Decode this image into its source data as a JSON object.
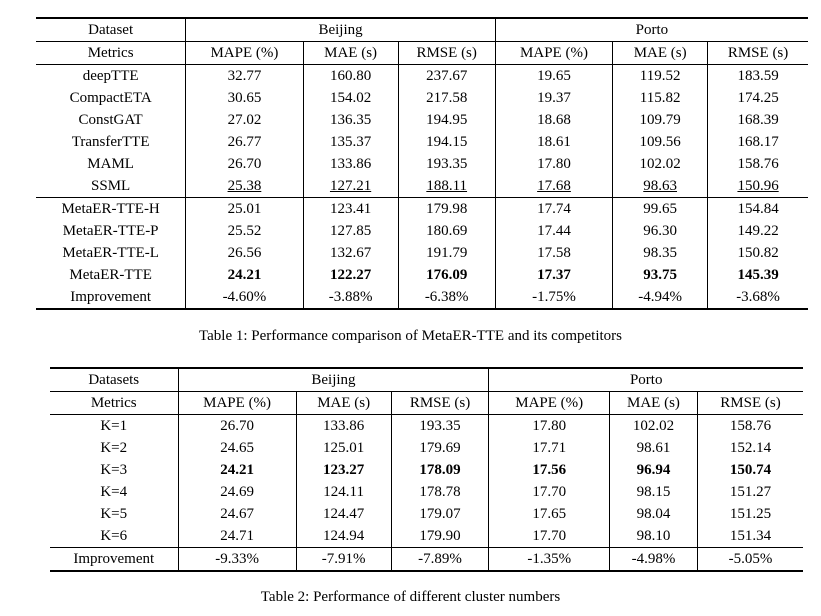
{
  "page": {
    "background": "#ffffff",
    "text_color": "#000000"
  },
  "tables": [
    {
      "caption": "Table 1: Performance comparison of MetaER-TTE and its competitors",
      "header": {
        "corner_top": "Dataset",
        "corner_bottom": "Metrics",
        "groups": [
          "Beijing",
          "Porto"
        ],
        "metrics": [
          "MAPE (%)",
          "MAE (s)",
          "RMSE (s)",
          "MAPE (%)",
          "MAE (s)",
          "RMSE (s)"
        ]
      },
      "rows": [
        {
          "label": "deepTTE",
          "values": [
            "32.77",
            "160.80",
            "237.67",
            "19.65",
            "119.52",
            "183.59"
          ]
        },
        {
          "label": "CompactETA",
          "values": [
            "30.65",
            "154.02",
            "217.58",
            "19.37",
            "115.82",
            "174.25"
          ]
        },
        {
          "label": "ConstGAT",
          "values": [
            "27.02",
            "136.35",
            "194.95",
            "18.68",
            "109.79",
            "168.39"
          ]
        },
        {
          "label": "TransferTTE",
          "values": [
            "26.77",
            "135.37",
            "194.15",
            "18.61",
            "109.56",
            "168.17"
          ]
        },
        {
          "label": "MAML",
          "values": [
            "26.70",
            "133.86",
            "193.35",
            "17.80",
            "102.02",
            "158.76"
          ]
        },
        {
          "label": "SSML",
          "values": [
            "25.38",
            "127.21",
            "188.11",
            "17.68",
            "98.63",
            "150.96"
          ],
          "emphasis": "underline-values"
        },
        {
          "label": "MetaER-TTE-H",
          "values": [
            "25.01",
            "123.41",
            "179.98",
            "17.74",
            "99.65",
            "154.84"
          ],
          "rule_above": true
        },
        {
          "label": "MetaER-TTE-P",
          "values": [
            "25.52",
            "127.85",
            "180.69",
            "17.44",
            "96.30",
            "149.22"
          ]
        },
        {
          "label": "MetaER-TTE-L",
          "values": [
            "26.56",
            "132.67",
            "191.79",
            "17.58",
            "98.35",
            "150.82"
          ]
        },
        {
          "label": "MetaER-TTE",
          "values": [
            "24.21",
            "122.27",
            "176.09",
            "17.37",
            "93.75",
            "145.39"
          ],
          "emphasis": "bold"
        },
        {
          "label": "Improvement",
          "values": [
            "-4.60%",
            "-3.88%",
            "-6.38%",
            "-1.75%",
            "-4.94%",
            "-3.68%"
          ]
        }
      ]
    },
    {
      "caption": "Table 2: Performance of different cluster numbers",
      "header": {
        "corner_top": "Datasets",
        "corner_bottom": "Metrics",
        "groups": [
          "Beijing",
          "Porto"
        ],
        "metrics": [
          "MAPE (%)",
          "MAE (s)",
          "RMSE (s)",
          "MAPE (%)",
          "MAE (s)",
          "RMSE (s)"
        ]
      },
      "rows": [
        {
          "label": "K=1",
          "values": [
            "26.70",
            "133.86",
            "193.35",
            "17.80",
            "102.02",
            "158.76"
          ]
        },
        {
          "label": "K=2",
          "values": [
            "24.65",
            "125.01",
            "179.69",
            "17.71",
            "98.61",
            "152.14"
          ]
        },
        {
          "label": "K=3",
          "values": [
            "24.21",
            "123.27",
            "178.09",
            "17.56",
            "96.94",
            "150.74"
          ],
          "emphasis": "bold"
        },
        {
          "label": "K=4",
          "values": [
            "24.69",
            "124.11",
            "178.78",
            "17.70",
            "98.15",
            "151.27"
          ]
        },
        {
          "label": "K=5",
          "values": [
            "24.67",
            "124.47",
            "179.07",
            "17.65",
            "98.04",
            "151.25"
          ]
        },
        {
          "label": "K=6",
          "values": [
            "24.71",
            "124.94",
            "179.90",
            "17.70",
            "98.10",
            "151.34"
          ]
        },
        {
          "label": "Improvement",
          "values": [
            "-9.33%",
            "-7.91%",
            "-7.89%",
            "-1.35%",
            "-4.98%",
            "-5.05%"
          ],
          "rule_above": true
        }
      ]
    }
  ]
}
